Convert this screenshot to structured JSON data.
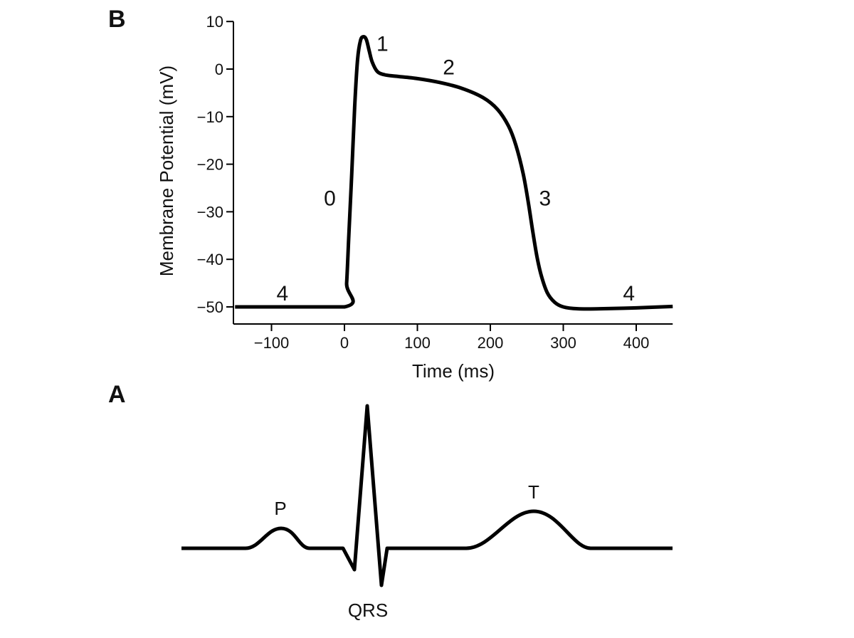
{
  "chart_data": [
    {
      "type": "line",
      "panel_label": "B",
      "xlabel": "Time (ms)",
      "ylabel": "Membrane Potential (mV)",
      "xlim": [
        -150,
        450
      ],
      "ylim": [
        -53,
        10
      ],
      "xticks": [
        -100,
        0,
        100,
        200,
        300,
        400
      ],
      "xtick_labels": [
        "−100",
        "0",
        "100",
        "200",
        "300",
        "400"
      ],
      "yticks": [
        10,
        0,
        -10,
        -20,
        -30,
        -40,
        -50
      ],
      "ytick_labels": [
        "10",
        "0",
        "−10",
        "−20",
        "−30",
        "−40",
        "−50"
      ],
      "grid": false,
      "line_color": "#000000",
      "x": [
        -150,
        0,
        3,
        6,
        10,
        14,
        18,
        22,
        26,
        30,
        34,
        38,
        45,
        55,
        70,
        100,
        130,
        160,
        190,
        210,
        225,
        235,
        245,
        252,
        258,
        264,
        270,
        278,
        288,
        300,
        320,
        350,
        400,
        450
      ],
      "y": [
        -50,
        -50,
        -45,
        -35,
        -22,
        -8,
        2,
        6.0,
        6.8,
        6.2,
        3.8,
        1.5,
        -0.5,
        -1.2,
        -1.5,
        -2.0,
        -2.8,
        -4.0,
        -6.0,
        -8.5,
        -12,
        -16,
        -22,
        -28,
        -34,
        -39.5,
        -43.5,
        -47,
        -49,
        -50,
        -50.4,
        -50.4,
        -50.2,
        -49.9
      ],
      "annotations": [
        {
          "text": "0",
          "x": -20,
          "y": -27
        },
        {
          "text": "1",
          "x": 52,
          "y": 5.5
        },
        {
          "text": "2",
          "x": 143,
          "y": 0.5
        },
        {
          "text": "3",
          "x": 275,
          "y": -27
        },
        {
          "text": "4",
          "x": -85,
          "y": -47
        },
        {
          "text": "4",
          "x": 390,
          "y": -47
        }
      ]
    },
    {
      "type": "line",
      "panel_label": "A",
      "line_color": "#000000",
      "wave_labels": [
        "P",
        "QRS",
        "T"
      ]
    }
  ]
}
